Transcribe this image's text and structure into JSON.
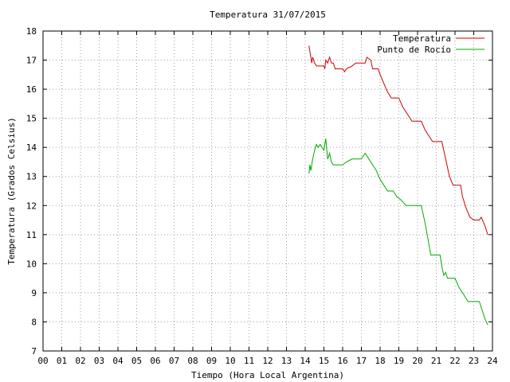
{
  "chart_data": {
    "type": "line",
    "title": "Temperatura 31/07/2015",
    "xlabel": "Tiempo (Hora Local Argentina)",
    "ylabel": "Temperatura (Grados Celsius)",
    "xlim": [
      0,
      24
    ],
    "ylim": [
      7,
      18
    ],
    "xticks": [
      "00",
      "01",
      "02",
      "03",
      "04",
      "05",
      "06",
      "07",
      "08",
      "09",
      "10",
      "11",
      "12",
      "13",
      "14",
      "15",
      "16",
      "17",
      "18",
      "19",
      "20",
      "21",
      "22",
      "23",
      "24"
    ],
    "yticks": [
      "7",
      "8",
      "9",
      "10",
      "11",
      "12",
      "13",
      "14",
      "15",
      "16",
      "17",
      "18"
    ],
    "grid": true,
    "legend_position": "top-right",
    "series": [
      {
        "name": "Temperatura",
        "color": "#cc0000",
        "points": [
          [
            14.2,
            17.5
          ],
          [
            14.3,
            17.1
          ],
          [
            14.35,
            16.9
          ],
          [
            14.4,
            17.1
          ],
          [
            14.5,
            16.9
          ],
          [
            14.6,
            16.8
          ],
          [
            15.0,
            16.8
          ],
          [
            15.05,
            16.7
          ],
          [
            15.1,
            17.0
          ],
          [
            15.2,
            16.9
          ],
          [
            15.3,
            17.1
          ],
          [
            15.4,
            16.9
          ],
          [
            15.5,
            16.9
          ],
          [
            15.6,
            16.7
          ],
          [
            16.0,
            16.7
          ],
          [
            16.1,
            16.6
          ],
          [
            16.2,
            16.7
          ],
          [
            16.5,
            16.8
          ],
          [
            16.7,
            16.9
          ],
          [
            17.2,
            16.9
          ],
          [
            17.3,
            17.1
          ],
          [
            17.5,
            17.0
          ],
          [
            17.6,
            16.7
          ],
          [
            17.9,
            16.7
          ],
          [
            18.0,
            16.5
          ],
          [
            18.2,
            16.2
          ],
          [
            18.4,
            15.9
          ],
          [
            18.6,
            15.7
          ],
          [
            19.0,
            15.7
          ],
          [
            19.2,
            15.4
          ],
          [
            19.5,
            15.1
          ],
          [
            19.7,
            14.9
          ],
          [
            20.2,
            14.9
          ],
          [
            20.4,
            14.6
          ],
          [
            20.6,
            14.4
          ],
          [
            20.8,
            14.2
          ],
          [
            21.3,
            14.2
          ],
          [
            21.5,
            13.6
          ],
          [
            21.7,
            13.0
          ],
          [
            21.9,
            12.7
          ],
          [
            22.3,
            12.7
          ],
          [
            22.4,
            12.3
          ],
          [
            22.6,
            11.9
          ],
          [
            22.8,
            11.6
          ],
          [
            23.0,
            11.5
          ],
          [
            23.3,
            11.5
          ],
          [
            23.4,
            11.6
          ],
          [
            23.6,
            11.3
          ],
          [
            23.75,
            11.0
          ]
        ]
      },
      {
        "name": "Punto de Rocío",
        "color": "#00aa00",
        "points": [
          [
            14.2,
            13.1
          ],
          [
            14.25,
            13.4
          ],
          [
            14.3,
            13.2
          ],
          [
            14.4,
            13.6
          ],
          [
            14.5,
            13.9
          ],
          [
            14.6,
            14.1
          ],
          [
            14.7,
            14.0
          ],
          [
            14.8,
            14.1
          ],
          [
            15.0,
            13.9
          ],
          [
            15.1,
            14.3
          ],
          [
            15.2,
            13.6
          ],
          [
            15.3,
            13.8
          ],
          [
            15.4,
            13.5
          ],
          [
            15.5,
            13.4
          ],
          [
            15.8,
            13.4
          ],
          [
            16.0,
            13.4
          ],
          [
            16.2,
            13.5
          ],
          [
            16.5,
            13.6
          ],
          [
            17.0,
            13.6
          ],
          [
            17.2,
            13.8
          ],
          [
            17.4,
            13.6
          ],
          [
            17.6,
            13.4
          ],
          [
            17.8,
            13.2
          ],
          [
            18.0,
            12.9
          ],
          [
            18.2,
            12.7
          ],
          [
            18.4,
            12.5
          ],
          [
            18.7,
            12.5
          ],
          [
            18.9,
            12.3
          ],
          [
            19.1,
            12.2
          ],
          [
            19.4,
            12.0
          ],
          [
            19.6,
            12.0
          ],
          [
            20.2,
            12.0
          ],
          [
            20.4,
            11.4
          ],
          [
            20.6,
            10.7
          ],
          [
            20.7,
            10.3
          ],
          [
            21.2,
            10.3
          ],
          [
            21.3,
            9.9
          ],
          [
            21.4,
            9.6
          ],
          [
            21.5,
            9.7
          ],
          [
            21.6,
            9.5
          ],
          [
            22.0,
            9.5
          ],
          [
            22.2,
            9.2
          ],
          [
            22.5,
            8.9
          ],
          [
            22.7,
            8.7
          ],
          [
            23.3,
            8.7
          ],
          [
            23.4,
            8.5
          ],
          [
            23.5,
            8.3
          ],
          [
            23.6,
            8.1
          ],
          [
            23.75,
            7.9
          ]
        ]
      }
    ]
  }
}
